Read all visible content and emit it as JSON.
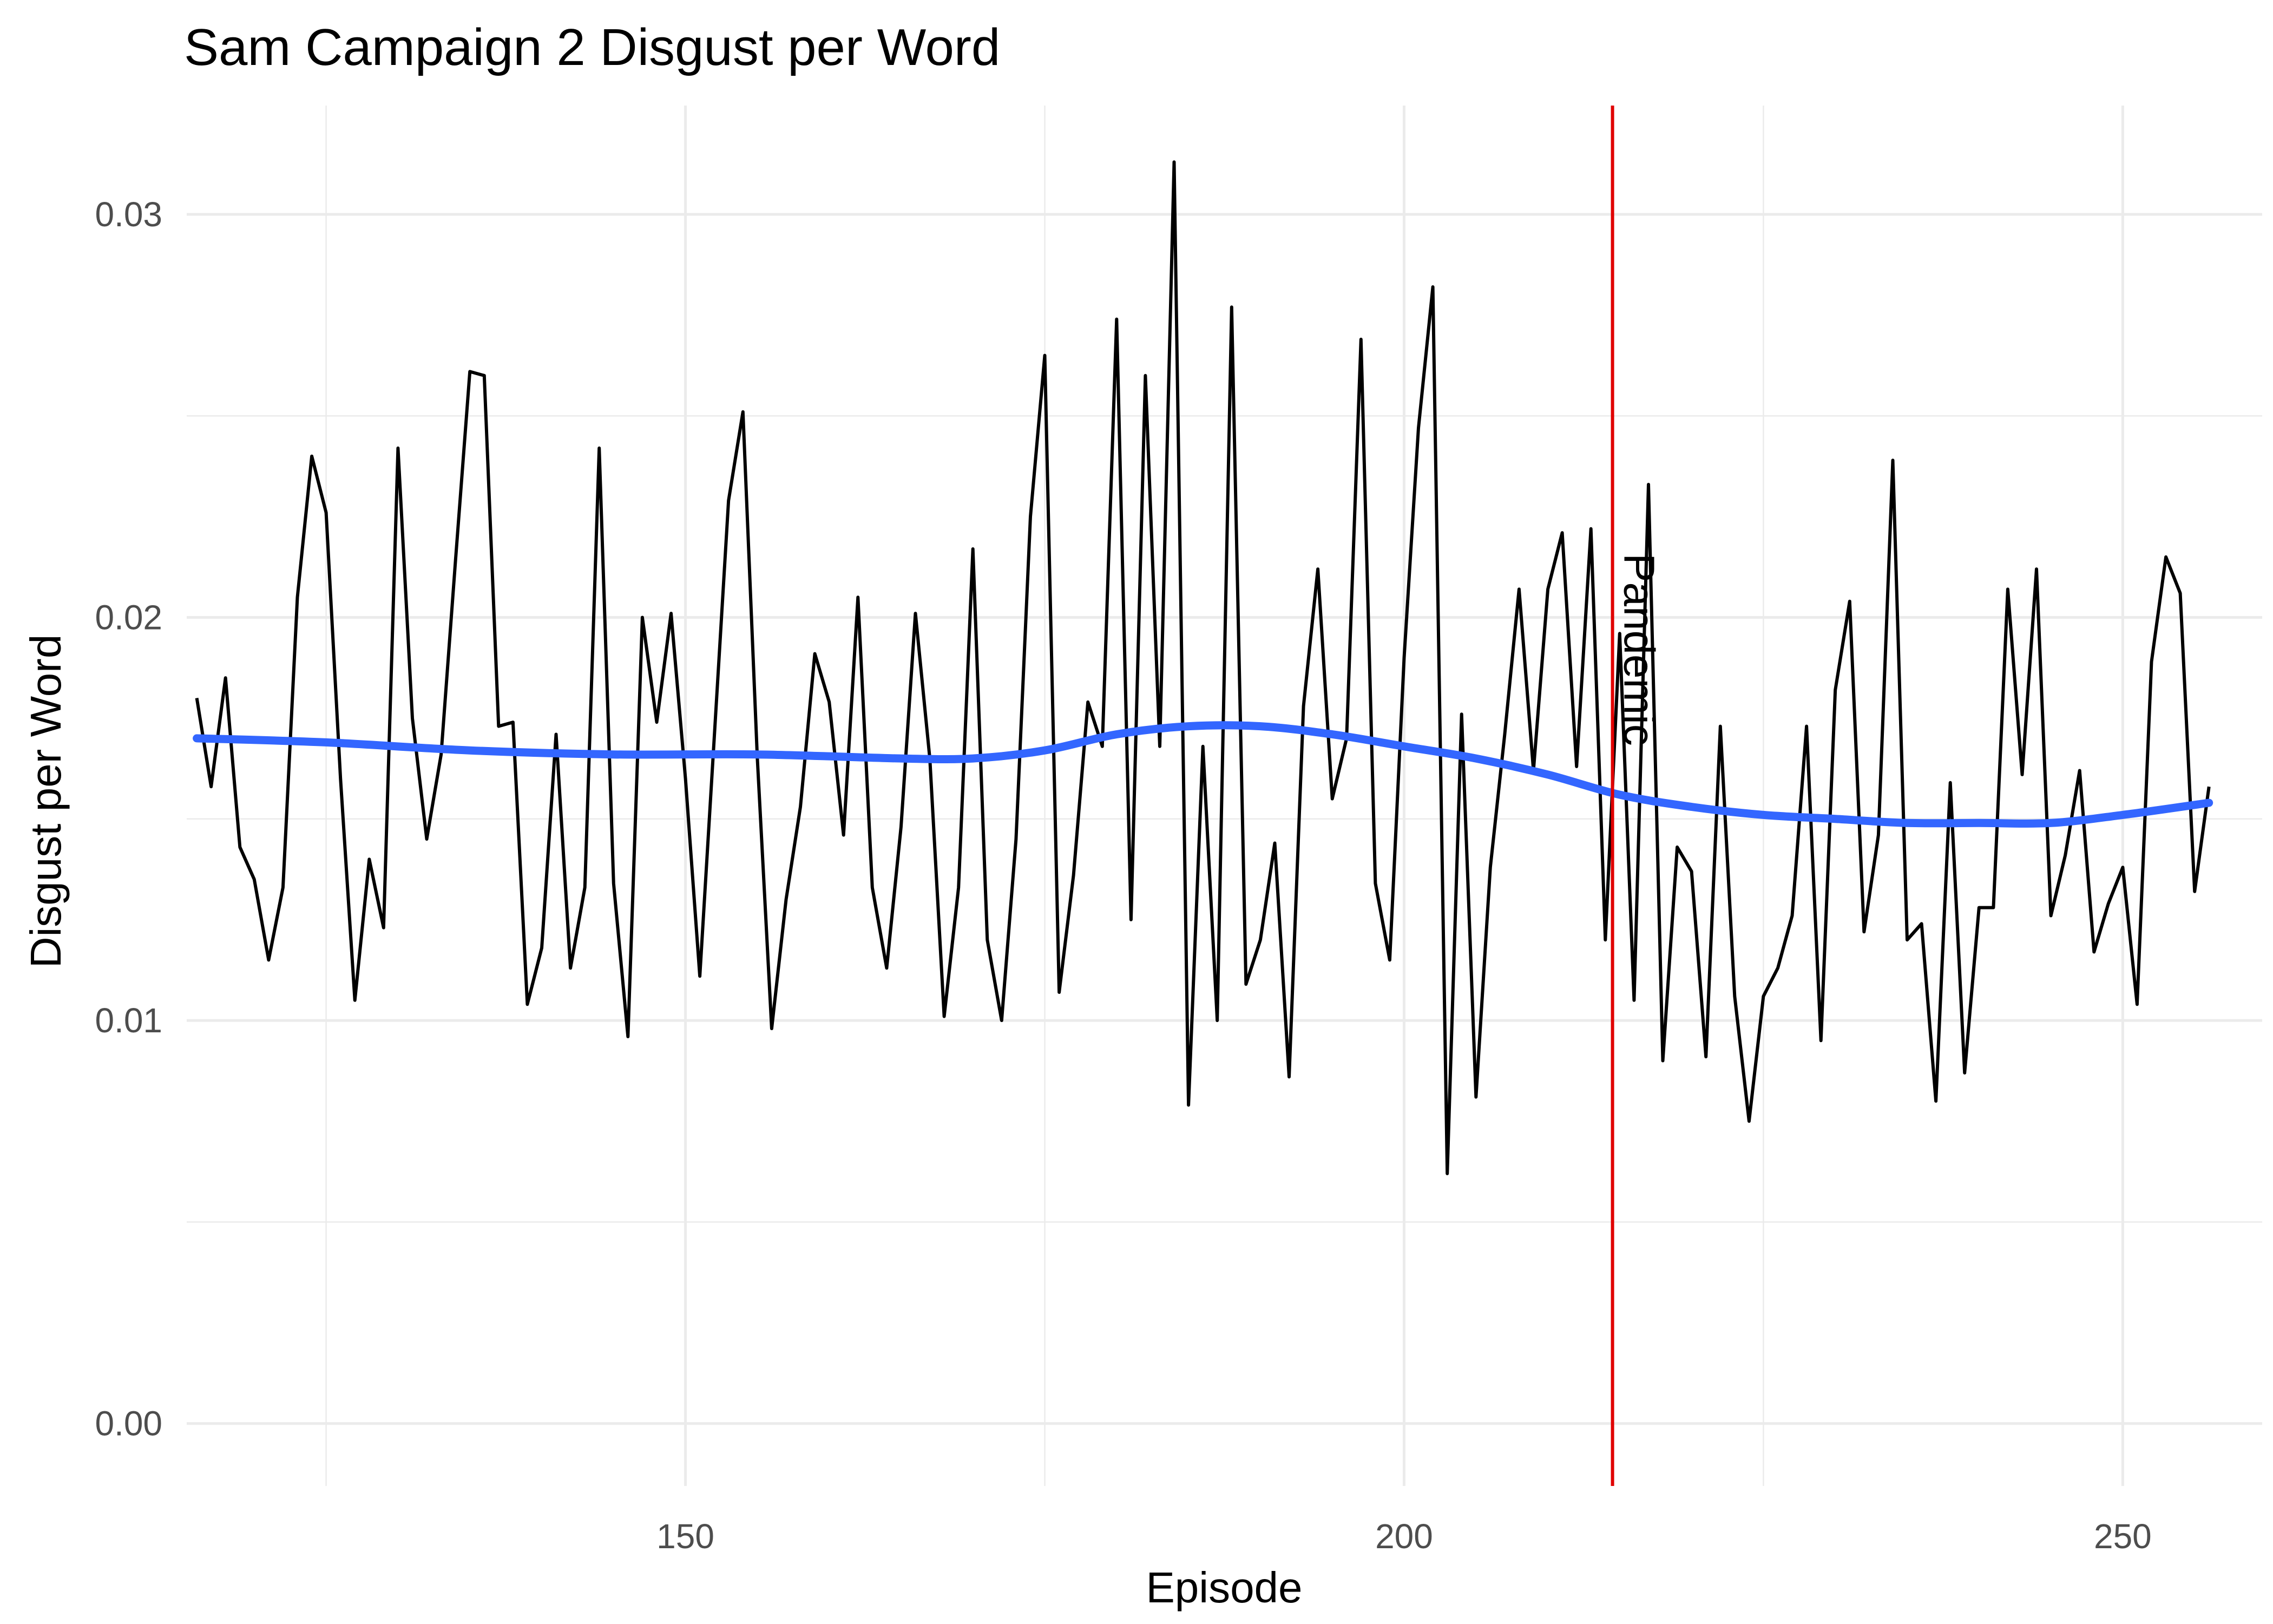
{
  "chart_data": {
    "type": "line",
    "title": "Sam Campaign 2 Disgust per Word",
    "xlabel": "Episode",
    "ylabel": "Disgust per Word",
    "xlim": [
      115.3,
      259.7
    ],
    "ylim": [
      -0.00155,
      0.0327
    ],
    "x_ticks": [
      150,
      200,
      250
    ],
    "y_ticks": [
      0.0,
      0.01,
      0.02,
      0.03
    ],
    "x_tick_labels": [
      "150",
      "200",
      "250"
    ],
    "y_tick_labels": [
      "0.00",
      "0.01",
      "0.02",
      "0.03"
    ],
    "grid": true,
    "colors": {
      "line": "#000000",
      "smooth": "#3366ff",
      "vline": "#e00000"
    },
    "series": [
      {
        "x": [
          116,
          117,
          118,
          119,
          120,
          121,
          122,
          123,
          124,
          125,
          126,
          127,
          128,
          129,
          130,
          131,
          132,
          133,
          134,
          135,
          136,
          137,
          138,
          139,
          140,
          141,
          142,
          143,
          144,
          145,
          146,
          147,
          148,
          149,
          150,
          151,
          152,
          153,
          154,
          155,
          156,
          157,
          158,
          159,
          160,
          161,
          162,
          163,
          164,
          165,
          166,
          167,
          168,
          169,
          170,
          171,
          172,
          173,
          174,
          175,
          176,
          177,
          178,
          179,
          180,
          181,
          182,
          183,
          184,
          185,
          186,
          187,
          188,
          189,
          190,
          191,
          192,
          193,
          194,
          195,
          196,
          197,
          198,
          199,
          200,
          201,
          202,
          203,
          204,
          205,
          206,
          207,
          208,
          209,
          210,
          211,
          212,
          213,
          214,
          215,
          216,
          217,
          218,
          219,
          220,
          221,
          222,
          223,
          224,
          225,
          226,
          227,
          228,
          229,
          230,
          231,
          232,
          233,
          234,
          235,
          236,
          237,
          238,
          239,
          240,
          241,
          242,
          243,
          244,
          245,
          246,
          247,
          248,
          249,
          250,
          251,
          252,
          253,
          254,
          255,
          256
        ],
        "values": [
          0.018,
          0.0158,
          0.0185,
          0.0143,
          0.0135,
          0.0115,
          0.0133,
          0.0205,
          0.024,
          0.0226,
          0.016,
          0.0105,
          0.014,
          0.0123,
          0.0242,
          0.0175,
          0.0145,
          0.0166,
          0.0214,
          0.0261,
          0.026,
          0.0173,
          0.0174,
          0.0104,
          0.0118,
          0.0171,
          0.0113,
          0.0133,
          0.0242,
          0.0134,
          0.0096,
          0.02,
          0.0174,
          0.0201,
          0.016,
          0.0111,
          0.017,
          0.0229,
          0.0251,
          0.0165,
          0.0098,
          0.013,
          0.0153,
          0.0191,
          0.0179,
          0.0146,
          0.0205,
          0.0133,
          0.0113,
          0.0148,
          0.0201,
          0.0165,
          0.0101,
          0.0133,
          0.0217,
          0.012,
          0.01,
          0.0145,
          0.0225,
          0.0265,
          0.0107,
          0.0136,
          0.0179,
          0.0168,
          0.0274,
          0.0125,
          0.026,
          0.0168,
          0.0313,
          0.0079,
          0.0168,
          0.01,
          0.0277,
          0.0109,
          0.012,
          0.0144,
          0.0086,
          0.0178,
          0.0212,
          0.0155,
          0.017,
          0.0269,
          0.0134,
          0.0115,
          0.019,
          0.0247,
          0.0282,
          0.0062,
          0.0176,
          0.0081,
          0.0138,
          0.0171,
          0.0207,
          0.0162,
          0.0207,
          0.0221,
          0.0163,
          0.0222,
          0.012,
          0.0196,
          0.0105,
          0.0233,
          0.009,
          0.0143,
          0.0137,
          0.0091,
          0.0173,
          0.0106,
          0.0075,
          0.0106,
          0.0113,
          0.0126,
          0.0173,
          0.0095,
          0.0182,
          0.0204,
          0.0122,
          0.0146,
          0.0239,
          0.012,
          0.0124,
          0.008,
          0.0159,
          0.0087,
          0.0128,
          0.0128,
          0.0207,
          0.0161,
          0.0212,
          0.0126,
          0.0141,
          0.0162,
          0.0117,
          0.0129,
          0.0138,
          0.0104,
          0.0189,
          0.0215,
          0.0206,
          0.0132,
          0.0158
        ]
      },
      {
        "x": [
          116,
          125,
          135,
          145,
          155,
          165,
          170,
          175,
          180,
          185,
          190,
          195,
          200,
          205,
          210,
          215,
          220,
          225,
          230,
          235,
          240,
          245,
          250,
          256
        ],
        "values": [
          0.017,
          0.0169,
          0.0167,
          0.0166,
          0.0166,
          0.0165,
          0.0165,
          0.0167,
          0.0171,
          0.0173,
          0.0173,
          0.0171,
          0.0168,
          0.0165,
          0.0161,
          0.0156,
          0.0153,
          0.0151,
          0.015,
          0.0149,
          0.0149,
          0.0149,
          0.0151,
          0.0154
        ]
      }
    ],
    "vline": {
      "x": 214.5,
      "label": "Pandemic"
    }
  }
}
